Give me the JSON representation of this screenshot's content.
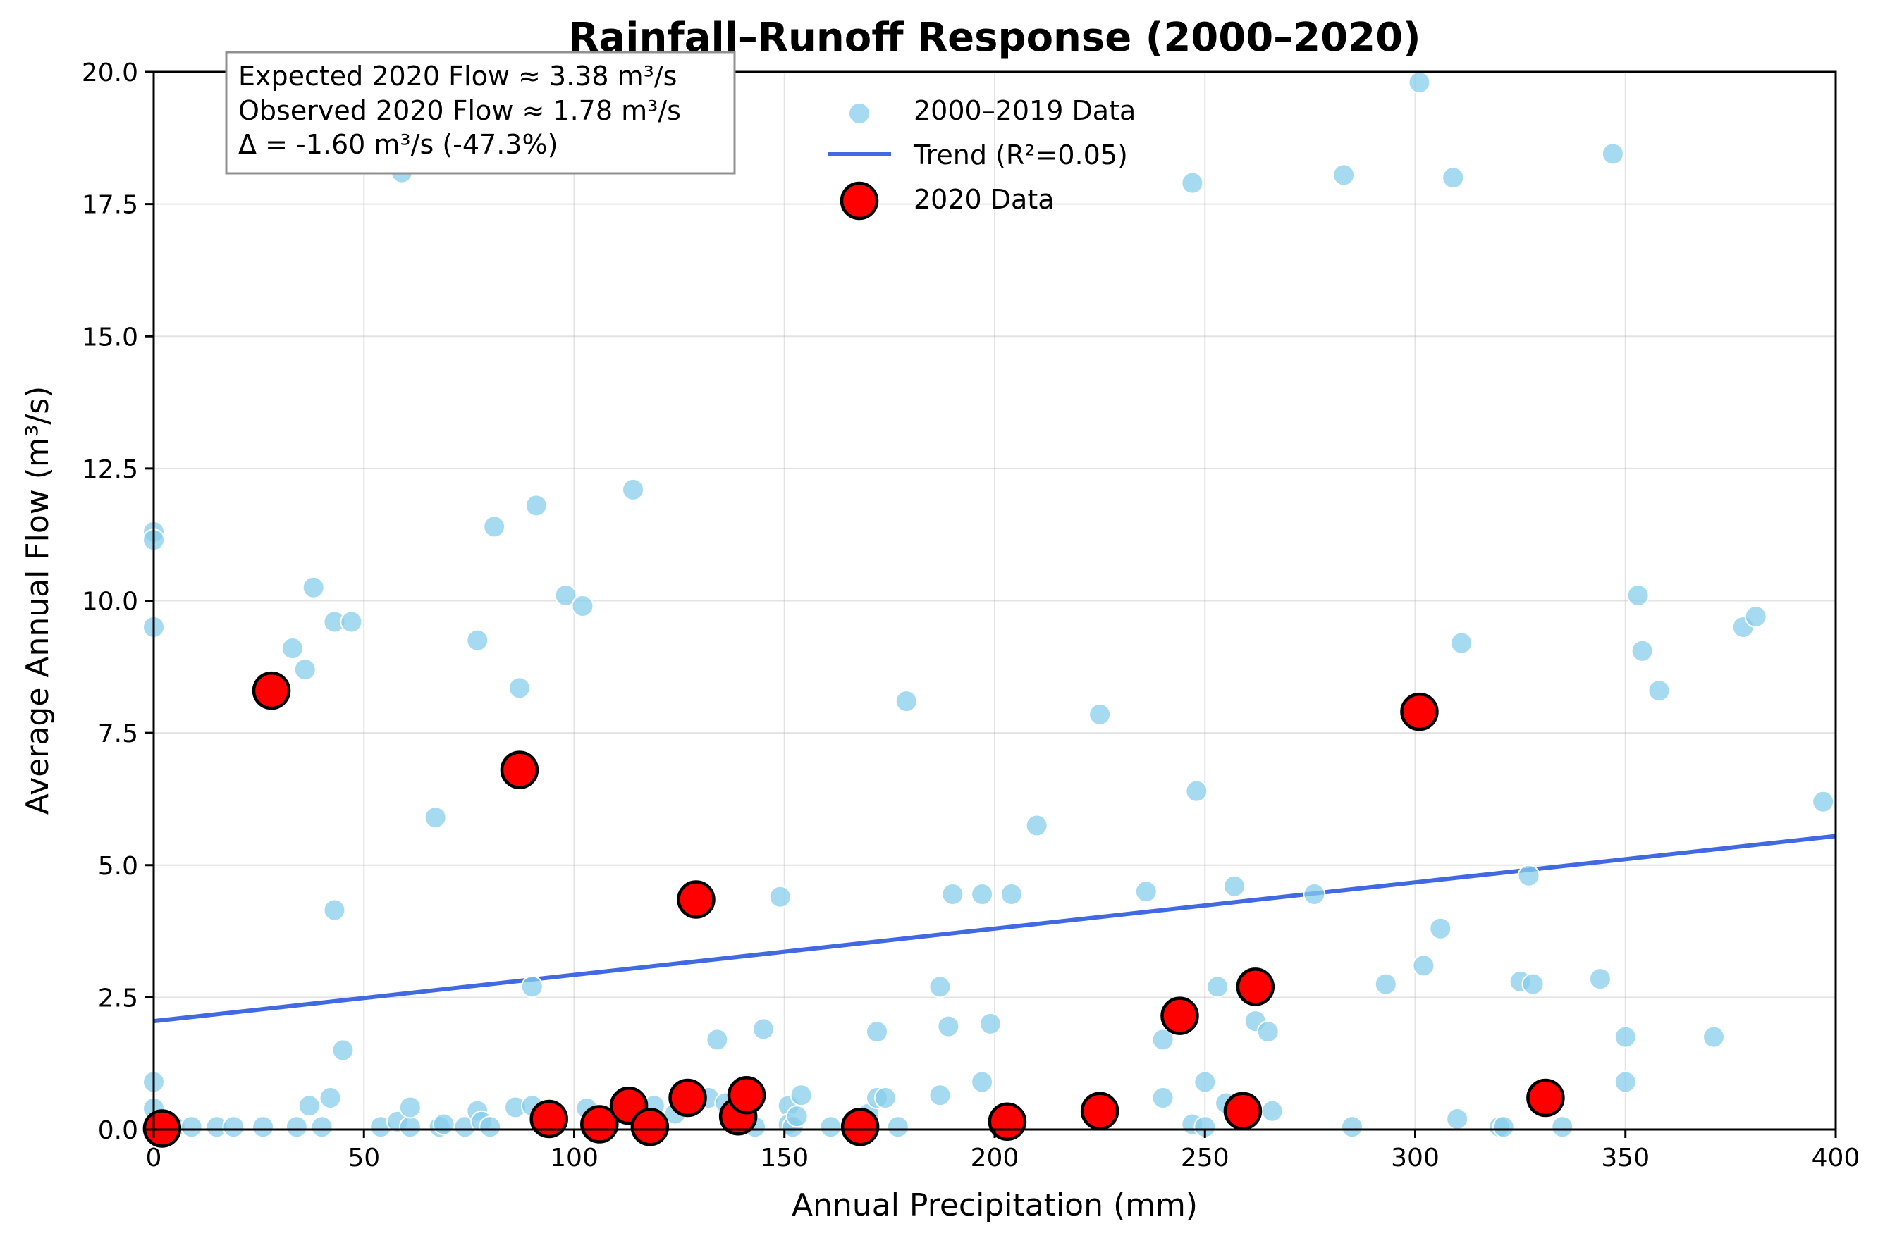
{
  "chart_data": {
    "type": "scatter",
    "title": "Rainfall–Runoff Response (2000–2020)",
    "xlabel": "Annual Precipitation (mm)",
    "ylabel": "Average Annual Flow (m³/s)",
    "xlim": [
      0,
      400
    ],
    "ylim": [
      0,
      20
    ],
    "xticks": [
      0,
      50,
      100,
      150,
      200,
      250,
      300,
      350,
      400
    ],
    "xtick_labels": [
      "0",
      "50",
      "100",
      "150",
      "200",
      "250",
      "300",
      "350",
      "400"
    ],
    "yticks": [
      0,
      2.5,
      5,
      7.5,
      10,
      12.5,
      15,
      17.5,
      20
    ],
    "ytick_labels": [
      "0.0",
      "2.5",
      "5.0",
      "7.5",
      "10.0",
      "12.5",
      "15.0",
      "17.5",
      "20.0"
    ],
    "grid": true,
    "legend_position": "upper-center",
    "series": [
      {
        "name": "2000–2019 Data",
        "kind": "scatter",
        "color": "#87ceeb",
        "points": [
          [
            0,
            11.3
          ],
          [
            0,
            11.15
          ],
          [
            0,
            9.5
          ],
          [
            0,
            0.9
          ],
          [
            0,
            0.4
          ],
          [
            0,
            0.1
          ],
          [
            5,
            0.05
          ],
          [
            9,
            0.05
          ],
          [
            15,
            0.05
          ],
          [
            19,
            0.05
          ],
          [
            26,
            0.05
          ],
          [
            34,
            0.05
          ],
          [
            37,
            0.45
          ],
          [
            38,
            10.25
          ],
          [
            33,
            9.1
          ],
          [
            36,
            8.7
          ],
          [
            40,
            0.05
          ],
          [
            42,
            0.6
          ],
          [
            43,
            9.6
          ],
          [
            43,
            4.15
          ],
          [
            45,
            1.5
          ],
          [
            47,
            9.6
          ],
          [
            54,
            0.05
          ],
          [
            58,
            0.15
          ],
          [
            59,
            18.1
          ],
          [
            61,
            0.05
          ],
          [
            61,
            0.42
          ],
          [
            67,
            5.9
          ],
          [
            68,
            0.05
          ],
          [
            69,
            0.1
          ],
          [
            74,
            0.05
          ],
          [
            77,
            9.25
          ],
          [
            77,
            0.35
          ],
          [
            78,
            0.15
          ],
          [
            80,
            0.05
          ],
          [
            81,
            11.4
          ],
          [
            86,
            0.42
          ],
          [
            87,
            8.35
          ],
          [
            90,
            0.45
          ],
          [
            90,
            2.7
          ],
          [
            91,
            11.8
          ],
          [
            98,
            10.1
          ],
          [
            102,
            9.9
          ],
          [
            103,
            0.4
          ],
          [
            106,
            0.15
          ],
          [
            108,
            0.2
          ],
          [
            114,
            12.1
          ],
          [
            119,
            0.45
          ],
          [
            124,
            0.3
          ],
          [
            132,
            0.6
          ],
          [
            134,
            1.7
          ],
          [
            136,
            0.5
          ],
          [
            143,
            0.05
          ],
          [
            145,
            1.9
          ],
          [
            149,
            4.4
          ],
          [
            151,
            0.45
          ],
          [
            151,
            0.1
          ],
          [
            152,
            0.05
          ],
          [
            153,
            0.25
          ],
          [
            154,
            0.65
          ],
          [
            161,
            0.05
          ],
          [
            170,
            0.3
          ],
          [
            172,
            0.6
          ],
          [
            172,
            1.85
          ],
          [
            174,
            0.6
          ],
          [
            177,
            0.05
          ],
          [
            179,
            8.1
          ],
          [
            187,
            2.7
          ],
          [
            187,
            0.65
          ],
          [
            189,
            1.95
          ],
          [
            190,
            4.45
          ],
          [
            197,
            4.45
          ],
          [
            197,
            0.9
          ],
          [
            199,
            2.0
          ],
          [
            204,
            4.45
          ],
          [
            210,
            5.75
          ],
          [
            225,
            7.85
          ],
          [
            236,
            4.5
          ],
          [
            240,
            0.6
          ],
          [
            240,
            1.7
          ],
          [
            247,
            17.9
          ],
          [
            247,
            0.1
          ],
          [
            248,
            6.4
          ],
          [
            250,
            0.9
          ],
          [
            250,
            0.05
          ],
          [
            253,
            2.7
          ],
          [
            255,
            0.5
          ],
          [
            257,
            4.6
          ],
          [
            262,
            2.05
          ],
          [
            265,
            1.85
          ],
          [
            266,
            0.35
          ],
          [
            276,
            4.45
          ],
          [
            283,
            18.05
          ],
          [
            285,
            0.05
          ],
          [
            293,
            2.75
          ],
          [
            301,
            19.8
          ],
          [
            302,
            3.1
          ],
          [
            306,
            3.8
          ],
          [
            309,
            18.0
          ],
          [
            310,
            0.2
          ],
          [
            311,
            9.2
          ],
          [
            320,
            0.05
          ],
          [
            321,
            0.05
          ],
          [
            325,
            2.8
          ],
          [
            327,
            4.8
          ],
          [
            328,
            2.75
          ],
          [
            335,
            0.05
          ],
          [
            344,
            2.85
          ],
          [
            347,
            18.45
          ],
          [
            350,
            1.75
          ],
          [
            350,
            0.9
          ],
          [
            353,
            10.1
          ],
          [
            354,
            9.05
          ],
          [
            358,
            8.3
          ],
          [
            371,
            1.75
          ],
          [
            378,
            9.5
          ],
          [
            381,
            9.7
          ],
          [
            397,
            6.2
          ]
        ]
      },
      {
        "name": "Trend (R²=0.05)",
        "kind": "line",
        "color": "#4169e1",
        "points": [
          [
            0,
            2.05
          ],
          [
            400,
            5.55
          ]
        ]
      },
      {
        "name": "2020 Data",
        "kind": "scatter",
        "color": "#ff0000",
        "points": [
          [
            2,
            0.02
          ],
          [
            28,
            8.3
          ],
          [
            87,
            6.8
          ],
          [
            94,
            0.2
          ],
          [
            106,
            0.1
          ],
          [
            113,
            0.45
          ],
          [
            118,
            0.05
          ],
          [
            127,
            0.6
          ],
          [
            129,
            4.35
          ],
          [
            139,
            0.25
          ],
          [
            141,
            0.65
          ],
          [
            168,
            0.05
          ],
          [
            203,
            0.15
          ],
          [
            225,
            0.35
          ],
          [
            244,
            2.15
          ],
          [
            259,
            0.35
          ],
          [
            262,
            2.7
          ],
          [
            301,
            7.9
          ],
          [
            331,
            0.6
          ]
        ]
      }
    ],
    "annotation_lines": [
      "Expected 2020 Flow ≈ 3.38 m³/s",
      "Observed 2020 Flow ≈ 1.78 m³/s",
      "Δ = -1.60 m³/s (-47.3%)"
    ]
  }
}
